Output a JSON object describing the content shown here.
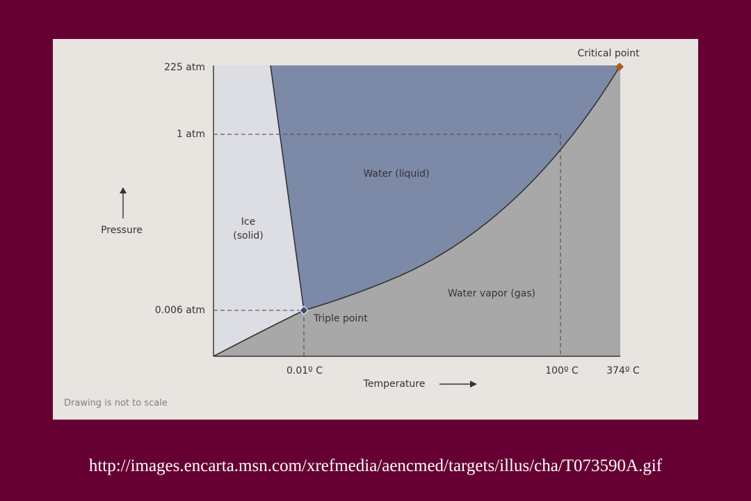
{
  "diagram": {
    "title": "",
    "pressure_ticks": [
      "225 atm",
      "1 atm",
      "0.006 atm"
    ],
    "temperature_ticks": [
      "0.01º C",
      "100º C",
      "374º C"
    ],
    "regions": {
      "solid": [
        "Ice",
        "(solid)"
      ],
      "liquid": "Water (liquid)",
      "gas": "Water vapor (gas)"
    },
    "points": {
      "triple": "Triple point",
      "critical": "Critical point"
    },
    "axes": {
      "y_label": "Pressure",
      "x_label": "Temperature"
    },
    "note": "Drawing is not to scale",
    "colors": {
      "page_background": "#660033",
      "panel": "#e8e4e0",
      "solid_region": "#dddde4",
      "liquid_region": "#7c8aa8",
      "gas_region": "#a8a8a8",
      "critical_marker": "#b05a20",
      "triple_marker": "#3a4a7a"
    }
  },
  "source_url": "http://images.encarta.msn.com/xrefmedia/aencmed/targets/illus/cha/T073590A.gif"
}
